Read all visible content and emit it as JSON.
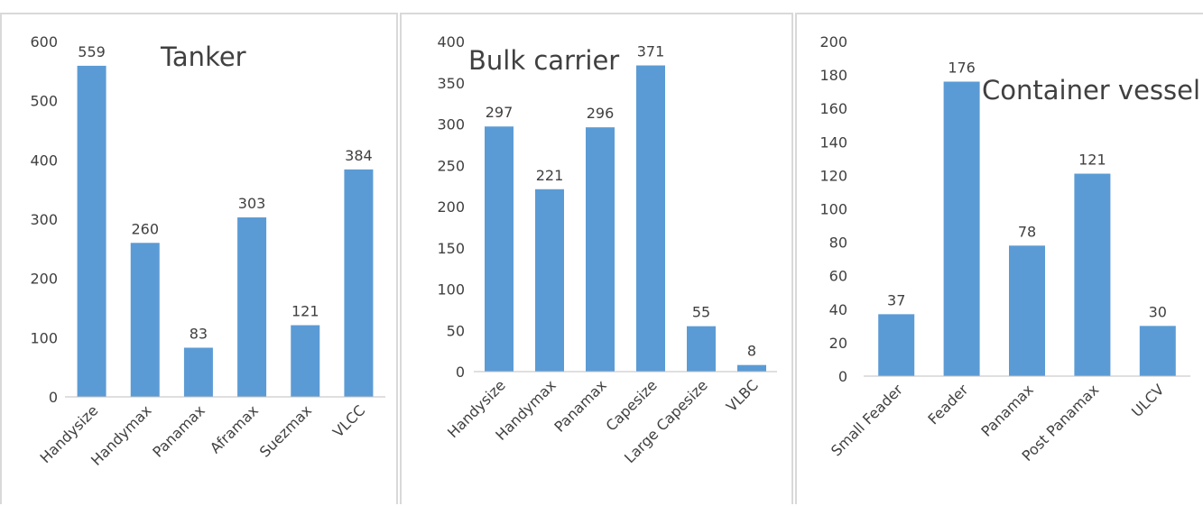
{
  "colors": {
    "bar": "#5b9bd5",
    "axis": "#bfbfbf",
    "text": "#404040",
    "border": "#d9d9d9"
  },
  "chart_data": [
    {
      "type": "bar",
      "title": "Tanker",
      "categories": [
        "Handysize",
        "Handymax",
        "Panamax",
        "Aframax",
        "Suezmax",
        "VLCC"
      ],
      "values": [
        559,
        260,
        83,
        303,
        121,
        384
      ],
      "ylim": [
        0,
        600
      ],
      "yticks": [
        0,
        100,
        200,
        300,
        400,
        500,
        600
      ],
      "grid": false,
      "xlabel": "",
      "ylabel": ""
    },
    {
      "type": "bar",
      "title": "Bulk carrier",
      "categories": [
        "Handysize",
        "Handymax",
        "Panamax",
        "Capesize",
        "Large Capesize",
        "VLBC"
      ],
      "values": [
        297,
        221,
        296,
        371,
        55,
        8
      ],
      "ylim": [
        0,
        400
      ],
      "yticks": [
        0,
        50,
        100,
        150,
        200,
        250,
        300,
        350,
        400
      ],
      "grid": false,
      "xlabel": "",
      "ylabel": ""
    },
    {
      "type": "bar",
      "title": "Container vessel",
      "categories": [
        "Small Feader",
        "Feader",
        "Panamax",
        "Post Panamax",
        "ULCV"
      ],
      "values": [
        37,
        176,
        78,
        121,
        30
      ],
      "ylim": [
        0,
        200
      ],
      "yticks": [
        0,
        20,
        40,
        60,
        80,
        100,
        120,
        140,
        160,
        180,
        200
      ],
      "grid": false,
      "xlabel": "",
      "ylabel": ""
    }
  ]
}
